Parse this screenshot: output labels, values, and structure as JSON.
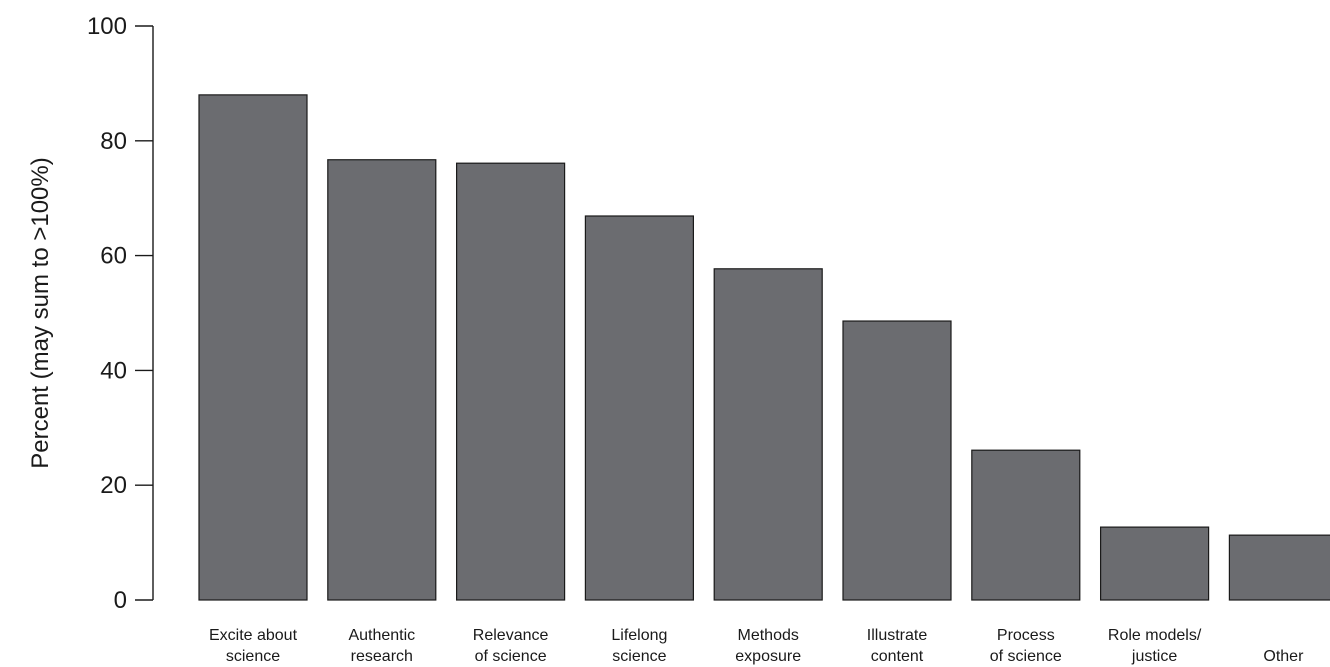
{
  "chart_data": {
    "type": "bar",
    "ylabel": "Percent  (may sum to >100%)",
    "xlabel": "",
    "ylim": [
      0,
      100
    ],
    "yticks": [
      0,
      20,
      40,
      60,
      80,
      100
    ],
    "grid": false,
    "bar_color": "#6b6c70",
    "categories": [
      [
        "Excite about",
        "science"
      ],
      [
        "Authentic",
        "research"
      ],
      [
        "Relevance",
        "of science"
      ],
      [
        "Lifelong",
        "science"
      ],
      [
        "Methods",
        "exposure"
      ],
      [
        "Illustrate",
        "content"
      ],
      [
        "Process",
        "of science"
      ],
      [
        "Role models/",
        "justice"
      ],
      [
        "Other"
      ]
    ],
    "values": [
      88,
      76.7,
      76.1,
      66.9,
      57.7,
      48.6,
      26.1,
      12.7,
      11.3
    ]
  }
}
